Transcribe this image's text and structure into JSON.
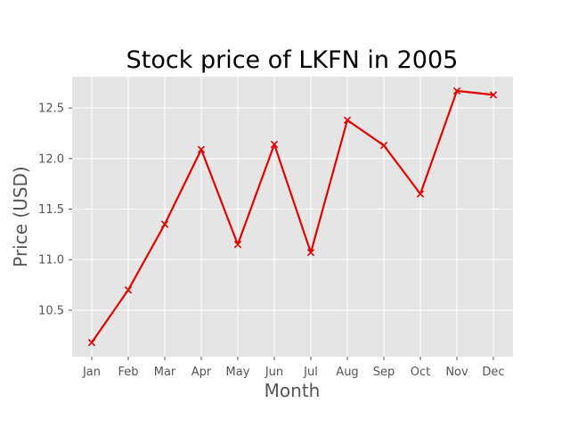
{
  "chart_data": {
    "type": "line",
    "title": "Stock price of LKFN in 2005",
    "xlabel": "Month",
    "ylabel": "Price (USD)",
    "categories": [
      "Jan",
      "Feb",
      "Mar",
      "Apr",
      "May",
      "Jun",
      "Jul",
      "Aug",
      "Sep",
      "Oct",
      "Nov",
      "Dec"
    ],
    "series": [
      {
        "values": [
          10.18,
          10.7,
          11.35,
          12.09,
          11.15,
          12.14,
          11.07,
          12.38,
          12.13,
          11.65,
          12.67,
          12.63
        ],
        "color": "#e00000",
        "marker": "x"
      }
    ],
    "yticks": [
      10.5,
      11.0,
      11.5,
      12.0,
      12.5
    ],
    "ylim": [
      10.04,
      12.81
    ],
    "grid": true,
    "style": {
      "background": "#e5e5e5",
      "grid_color": "#ffffff",
      "line_color": "#e00000"
    }
  }
}
